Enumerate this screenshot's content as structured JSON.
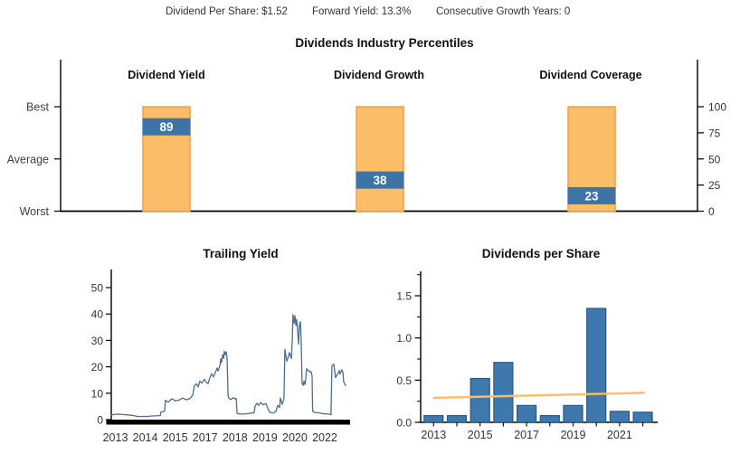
{
  "header": {
    "items": [
      "Dividend Per Share: $1.52",
      "Forward Yield: 13.3%",
      "Consecutive Growth Years: 0"
    ]
  },
  "colors": {
    "orange": "#FBBD68",
    "orange_border": "#F0A144",
    "blue_marker": "#3D74A7",
    "marker_text": "#FFFFFF",
    "bar_fill": "#3E78AC",
    "bar_border": "#2A5784",
    "line": "#4D6E90",
    "trend": "#FBBD68",
    "axis": "#000000",
    "band": "#000000",
    "tick_text": "#333333",
    "side_label_text": "#404040"
  },
  "chart_data": [
    {
      "type": "bar",
      "name": "industry_percentiles",
      "title": "Dividends Industry Percentiles",
      "categories": [
        "Dividend Yield",
        "Dividend Growth",
        "Dividend Coverage"
      ],
      "values": [
        89,
        38,
        23
      ],
      "ylim": [
        0,
        100
      ],
      "left_axis_labels": [
        "Best",
        "Average",
        "Worst"
      ],
      "right_axis_ticks": [
        100,
        75,
        50,
        25,
        0
      ],
      "style": "full-range orange column (0-100) with blue percentile marker band; white value label inside marker"
    },
    {
      "type": "line",
      "name": "trailing_yield",
      "title": "Trailing Yield",
      "ylim": [
        0,
        57
      ],
      "y_ticks": [
        0,
        10,
        20,
        30,
        40,
        50
      ],
      "x_tick_labels": [
        "2013",
        "2014",
        "2015",
        "2017",
        "2018",
        "2019",
        "2020",
        "2022"
      ],
      "points": [
        [
          0.0,
          1.8
        ],
        [
          0.027,
          2.1
        ],
        [
          0.057,
          1.9
        ],
        [
          0.087,
          1.6
        ],
        [
          0.11,
          1.2
        ],
        [
          0.148,
          1.2
        ],
        [
          0.178,
          1.4
        ],
        [
          0.205,
          1.5
        ],
        [
          0.208,
          2.9
        ],
        [
          0.223,
          3.1
        ],
        [
          0.227,
          7.3
        ],
        [
          0.239,
          6.6
        ],
        [
          0.254,
          7.9
        ],
        [
          0.269,
          7.1
        ],
        [
          0.284,
          7.4
        ],
        [
          0.299,
          8.2
        ],
        [
          0.314,
          7.5
        ],
        [
          0.33,
          8.0
        ],
        [
          0.341,
          9.2
        ],
        [
          0.348,
          12.8
        ],
        [
          0.356,
          13.6
        ],
        [
          0.364,
          12.4
        ],
        [
          0.371,
          14.6
        ],
        [
          0.379,
          13.8
        ],
        [
          0.39,
          15.3
        ],
        [
          0.398,
          14.1
        ],
        [
          0.405,
          13.6
        ],
        [
          0.413,
          15.9
        ],
        [
          0.42,
          17.4
        ],
        [
          0.428,
          16.2
        ],
        [
          0.436,
          17.9
        ],
        [
          0.443,
          19.6
        ],
        [
          0.447,
          18.4
        ],
        [
          0.455,
          20.4
        ],
        [
          0.458,
          23.0
        ],
        [
          0.462,
          21.6
        ],
        [
          0.466,
          24.6
        ],
        [
          0.47,
          23.2
        ],
        [
          0.473,
          25.9
        ],
        [
          0.477,
          24.6
        ],
        [
          0.481,
          25.7
        ],
        [
          0.485,
          23.4
        ],
        [
          0.489,
          8.9
        ],
        [
          0.492,
          8.2
        ],
        [
          0.5,
          7.6
        ],
        [
          0.511,
          8.3
        ],
        [
          0.519,
          7.8
        ],
        [
          0.523,
          8.0
        ],
        [
          0.527,
          2.3
        ],
        [
          0.542,
          2.1
        ],
        [
          0.564,
          2.2
        ],
        [
          0.587,
          2.5
        ],
        [
          0.598,
          2.6
        ],
        [
          0.602,
          5.1
        ],
        [
          0.61,
          6.2
        ],
        [
          0.617,
          5.4
        ],
        [
          0.625,
          6.5
        ],
        [
          0.636,
          5.6
        ],
        [
          0.648,
          6.1
        ],
        [
          0.655,
          4.3
        ],
        [
          0.663,
          2.8
        ],
        [
          0.678,
          2.5
        ],
        [
          0.689,
          3.0
        ],
        [
          0.697,
          5.4
        ],
        [
          0.705,
          4.6
        ],
        [
          0.708,
          8.2
        ],
        [
          0.716,
          5.8
        ],
        [
          0.723,
          7.8
        ],
        [
          0.727,
          26.6
        ],
        [
          0.735,
          22.1
        ],
        [
          0.742,
          24.0
        ],
        [
          0.746,
          25.4
        ],
        [
          0.754,
          23.1
        ],
        [
          0.758,
          30.2
        ],
        [
          0.761,
          39.8
        ],
        [
          0.765,
          36.4
        ],
        [
          0.769,
          39.4
        ],
        [
          0.773,
          35.6
        ],
        [
          0.776,
          37.9
        ],
        [
          0.78,
          34.2
        ],
        [
          0.784,
          28.6
        ],
        [
          0.788,
          35.7
        ],
        [
          0.792,
          37.1
        ],
        [
          0.795,
          30.4
        ],
        [
          0.799,
          13.9
        ],
        [
          0.803,
          12.9
        ],
        [
          0.807,
          14.6
        ],
        [
          0.811,
          13.3
        ],
        [
          0.814,
          15.3
        ],
        [
          0.818,
          19.3
        ],
        [
          0.822,
          18.7
        ],
        [
          0.83,
          18.4
        ],
        [
          0.833,
          17.9
        ],
        [
          0.837,
          18.1
        ],
        [
          0.841,
          16.4
        ],
        [
          0.843,
          3.2
        ],
        [
          0.852,
          2.7
        ],
        [
          0.867,
          2.6
        ],
        [
          0.883,
          2.3
        ],
        [
          0.898,
          2.2
        ],
        [
          0.913,
          2.1
        ],
        [
          0.92,
          1.9
        ],
        [
          0.924,
          20.3
        ],
        [
          0.932,
          21.0
        ],
        [
          0.939,
          15.9
        ],
        [
          0.947,
          17.1
        ],
        [
          0.955,
          18.6
        ],
        [
          0.958,
          17.3
        ],
        [
          0.966,
          18.9
        ],
        [
          0.97,
          17.8
        ],
        [
          0.973,
          14.3
        ],
        [
          0.981,
          12.9
        ]
      ]
    },
    {
      "type": "bar",
      "name": "dividends_per_share",
      "title": "Dividends per Share",
      "categories": [
        "2013",
        "2014",
        "2015",
        "2016",
        "2017",
        "2018",
        "2019",
        "2020",
        "2021",
        "2022"
      ],
      "values": [
        0.08,
        0.08,
        0.52,
        0.71,
        0.2,
        0.08,
        0.2,
        1.35,
        0.13,
        0.12
      ],
      "ylim": [
        0,
        1.79
      ],
      "y_ticks": [
        "0.0",
        "0.5",
        "1.0",
        "1.5"
      ],
      "y_minor_ticks": [
        0.25,
        0.75,
        1.25,
        1.75
      ],
      "x_tick_labels": [
        "2013",
        "2015",
        "2017",
        "2019",
        "2021"
      ],
      "x_tick_indices": [
        0,
        2,
        4,
        6,
        8
      ],
      "trend": {
        "start": 0.29,
        "end": 0.35
      }
    }
  ]
}
